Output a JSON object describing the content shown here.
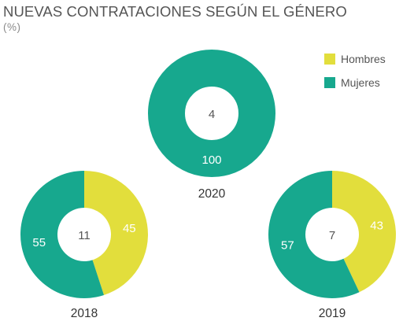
{
  "chart": {
    "title": "NUEVAS CONTRATACIONES SEGÚN EL GÉNERO",
    "subtitle": "(%)"
  },
  "legend": [
    {
      "label": "Hombres",
      "color": "#e2de3c"
    },
    {
      "label": "Mujeres",
      "color": "#17a88e"
    }
  ],
  "chart_data": {
    "type": "pie",
    "title": "NUEVAS CONTRATACIONES SEGÚN EL GÉNERO",
    "subtitle": "(%)",
    "legend_position": "top-right",
    "series_names": [
      "Hombres",
      "Mujeres"
    ],
    "colors": {
      "Hombres": "#e2de3c",
      "Mujeres": "#17a88e"
    },
    "charts": [
      {
        "year": "2020",
        "center_label": "4",
        "slices": [
          {
            "name": "Hombres",
            "value": 0,
            "label": ""
          },
          {
            "name": "Mujeres",
            "value": 100,
            "label": "100"
          }
        ]
      },
      {
        "year": "2018",
        "center_label": "11",
        "slices": [
          {
            "name": "Hombres",
            "value": 45,
            "label": "45"
          },
          {
            "name": "Mujeres",
            "value": 55,
            "label": "55"
          }
        ]
      },
      {
        "year": "2019",
        "center_label": "7",
        "slices": [
          {
            "name": "Hombres",
            "value": 43,
            "label": "43"
          },
          {
            "name": "Mujeres",
            "value": 57,
            "label": "57"
          }
        ]
      }
    ]
  }
}
